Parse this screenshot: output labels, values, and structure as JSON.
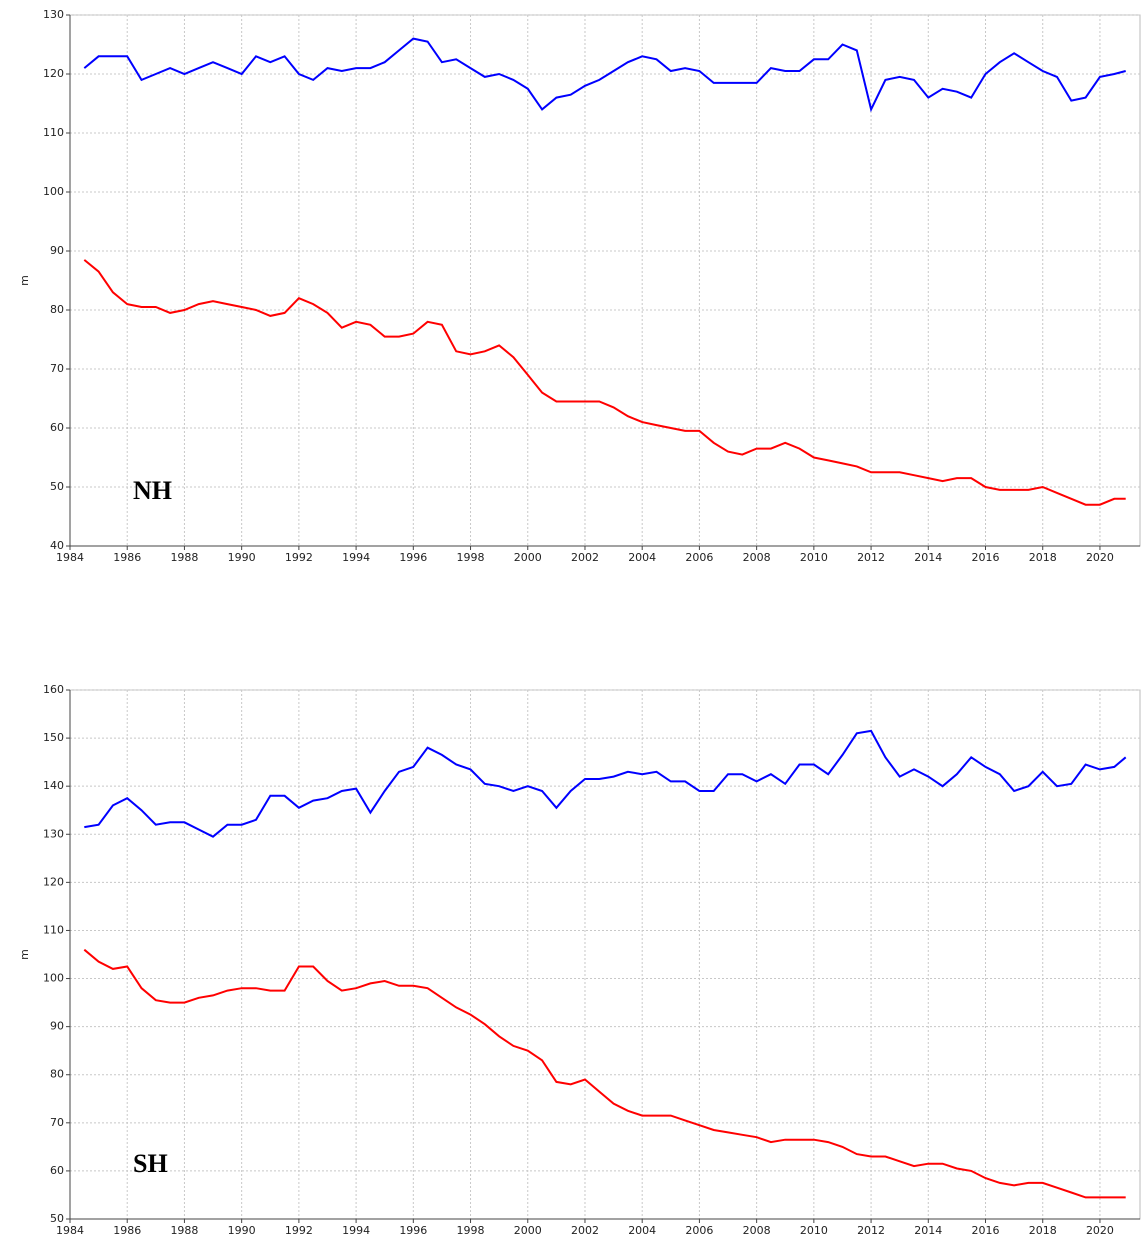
{
  "chart_data": [
    {
      "type": "line",
      "annotation": "NH",
      "y_label": "m",
      "x": [
        1984.5,
        1985,
        1985.5,
        1986,
        1986.5,
        1987,
        1987.5,
        1988,
        1988.5,
        1989,
        1989.5,
        1990,
        1990.5,
        1991,
        1991.5,
        1992,
        1992.5,
        1993,
        1993.5,
        1994,
        1994.5,
        1995,
        1995.5,
        1996,
        1996.5,
        1997,
        1997.5,
        1998,
        1998.5,
        1999,
        1999.5,
        2000,
        2000.5,
        2001,
        2001.5,
        2002,
        2002.5,
        2003,
        2003.5,
        2004,
        2004.5,
        2005,
        2005.5,
        2006,
        2006.5,
        2007,
        2007.5,
        2008,
        2008.5,
        2009,
        2009.5,
        2010,
        2010.5,
        2011,
        2011.5,
        2012,
        2012.5,
        2013,
        2013.5,
        2014,
        2014.5,
        2015,
        2015.5,
        2016,
        2016.5,
        2017,
        2017.5,
        2018,
        2018.5,
        2019,
        2019.5,
        2020,
        2020.5,
        2020.9
      ],
      "series": [
        {
          "color": "#0000ff",
          "values": [
            121,
            123,
            123,
            123,
            119,
            120,
            121,
            120,
            121,
            122,
            121,
            120,
            123,
            122,
            123,
            120,
            119,
            121,
            120.5,
            121,
            121,
            122,
            124,
            126,
            125.5,
            122,
            122.5,
            121,
            119.5,
            120,
            119,
            117.5,
            114,
            116,
            116.5,
            118,
            119,
            120.5,
            122,
            123,
            122.5,
            120.5,
            121,
            120.5,
            118.5,
            118.5,
            118.5,
            118.5,
            121,
            120.5,
            120.5,
            122.5,
            122.5,
            125,
            124,
            114,
            119,
            119.5,
            119,
            116,
            117.5,
            117,
            116,
            120,
            122,
            123.5,
            122,
            120.5,
            119.5,
            115.5,
            116,
            119.5,
            120,
            120.5
          ]
        },
        {
          "color": "#ff0000",
          "values": [
            88.5,
            86.5,
            83,
            81,
            80.5,
            80.5,
            79.5,
            80,
            81,
            81.5,
            81,
            80.5,
            80,
            79,
            79.5,
            82,
            81,
            79.5,
            77,
            78,
            77.5,
            75.5,
            75.5,
            76,
            78,
            77.5,
            73,
            72.5,
            73,
            74,
            72,
            69,
            66,
            64.5,
            64.5,
            64.5,
            64.5,
            63.5,
            62,
            61,
            60.5,
            60,
            59.5,
            59.5,
            57.5,
            56,
            55.5,
            56.5,
            56.5,
            57.5,
            56.5,
            55,
            54.5,
            54,
            53.5,
            52.5,
            52.5,
            52.5,
            52,
            51.5,
            51,
            51.5,
            51.5,
            50,
            49.5,
            49.5,
            49.5,
            50,
            49,
            48,
            47,
            47,
            48,
            48
          ]
        }
      ],
      "xlim": [
        1984,
        2021.4
      ],
      "xticks": [
        1984,
        1986,
        1988,
        1990,
        1992,
        1994,
        1996,
        1998,
        2000,
        2002,
        2004,
        2006,
        2008,
        2010,
        2012,
        2014,
        2016,
        2018,
        2020
      ],
      "ylim": [
        40,
        130
      ],
      "yticks": [
        40,
        50,
        60,
        70,
        80,
        90,
        100,
        110,
        120,
        130
      ],
      "grid": true
    },
    {
      "type": "line",
      "annotation": "SH",
      "y_label": "m",
      "x": [
        1984.5,
        1985,
        1985.5,
        1986,
        1986.5,
        1987,
        1987.5,
        1988,
        1988.5,
        1989,
        1989.5,
        1990,
        1990.5,
        1991,
        1991.5,
        1992,
        1992.5,
        1993,
        1993.5,
        1994,
        1994.5,
        1995,
        1995.5,
        1996,
        1996.5,
        1997,
        1997.5,
        1998,
        1998.5,
        1999,
        1999.5,
        2000,
        2000.5,
        2001,
        2001.5,
        2002,
        2002.5,
        2003,
        2003.5,
        2004,
        2004.5,
        2005,
        2005.5,
        2006,
        2006.5,
        2007,
        2007.5,
        2008,
        2008.5,
        2009,
        2009.5,
        2010,
        2010.5,
        2011,
        2011.5,
        2012,
        2012.5,
        2013,
        2013.5,
        2014,
        2014.5,
        2015,
        2015.5,
        2016,
        2016.5,
        2017,
        2017.5,
        2018,
        2018.5,
        2019,
        2019.5,
        2020,
        2020.5,
        2020.9
      ],
      "series": [
        {
          "color": "#0000ff",
          "values": [
            131.5,
            132,
            136,
            137.5,
            135,
            132,
            132.5,
            132.5,
            131,
            129.5,
            132,
            132,
            133,
            138,
            138,
            135.5,
            137,
            137.5,
            139,
            139.5,
            134.5,
            139,
            143,
            144,
            148,
            146.5,
            144.5,
            143.5,
            140.5,
            140,
            139,
            140,
            139,
            135.5,
            139,
            141.5,
            141.5,
            142,
            143,
            142.5,
            143,
            141,
            141,
            139,
            139,
            142.5,
            142.5,
            141,
            142.5,
            140.5,
            144.5,
            144.5,
            142.5,
            146.5,
            151,
            151.5,
            146,
            142,
            143.5,
            142,
            140,
            142.5,
            146,
            144,
            142.5,
            139,
            140,
            143,
            140,
            140.5,
            144.5,
            143.5,
            144,
            146
          ]
        },
        {
          "color": "#ff0000",
          "values": [
            106,
            103.5,
            102,
            102.5,
            98,
            95.5,
            95,
            95,
            96,
            96.5,
            97.5,
            98,
            98,
            97.5,
            97.5,
            102.5,
            102.5,
            99.5,
            97.5,
            98,
            99,
            99.5,
            98.5,
            98.5,
            98,
            96,
            94,
            92.5,
            90.5,
            88,
            86,
            85,
            83,
            78.5,
            78,
            79,
            76.5,
            74,
            72.5,
            71.5,
            71.5,
            71.5,
            70.5,
            69.5,
            68.5,
            68,
            67.5,
            67,
            66,
            66.5,
            66.5,
            66.5,
            66,
            65,
            63.5,
            63,
            63,
            62,
            61,
            61.5,
            61.5,
            60.5,
            60,
            58.5,
            57.5,
            57,
            57.5,
            57.5,
            56.5,
            55.5,
            54.5,
            54.5,
            54.5,
            54.5
          ]
        }
      ],
      "xlim": [
        1984,
        2021.4
      ],
      "xticks": [
        1984,
        1986,
        1988,
        1990,
        1992,
        1994,
        1996,
        1998,
        2000,
        2002,
        2004,
        2006,
        2008,
        2010,
        2012,
        2014,
        2016,
        2018,
        2020
      ],
      "ylim": [
        50,
        160
      ],
      "yticks": [
        50,
        60,
        70,
        80,
        90,
        100,
        110,
        120,
        130,
        140,
        150,
        160
      ],
      "grid": true
    }
  ]
}
